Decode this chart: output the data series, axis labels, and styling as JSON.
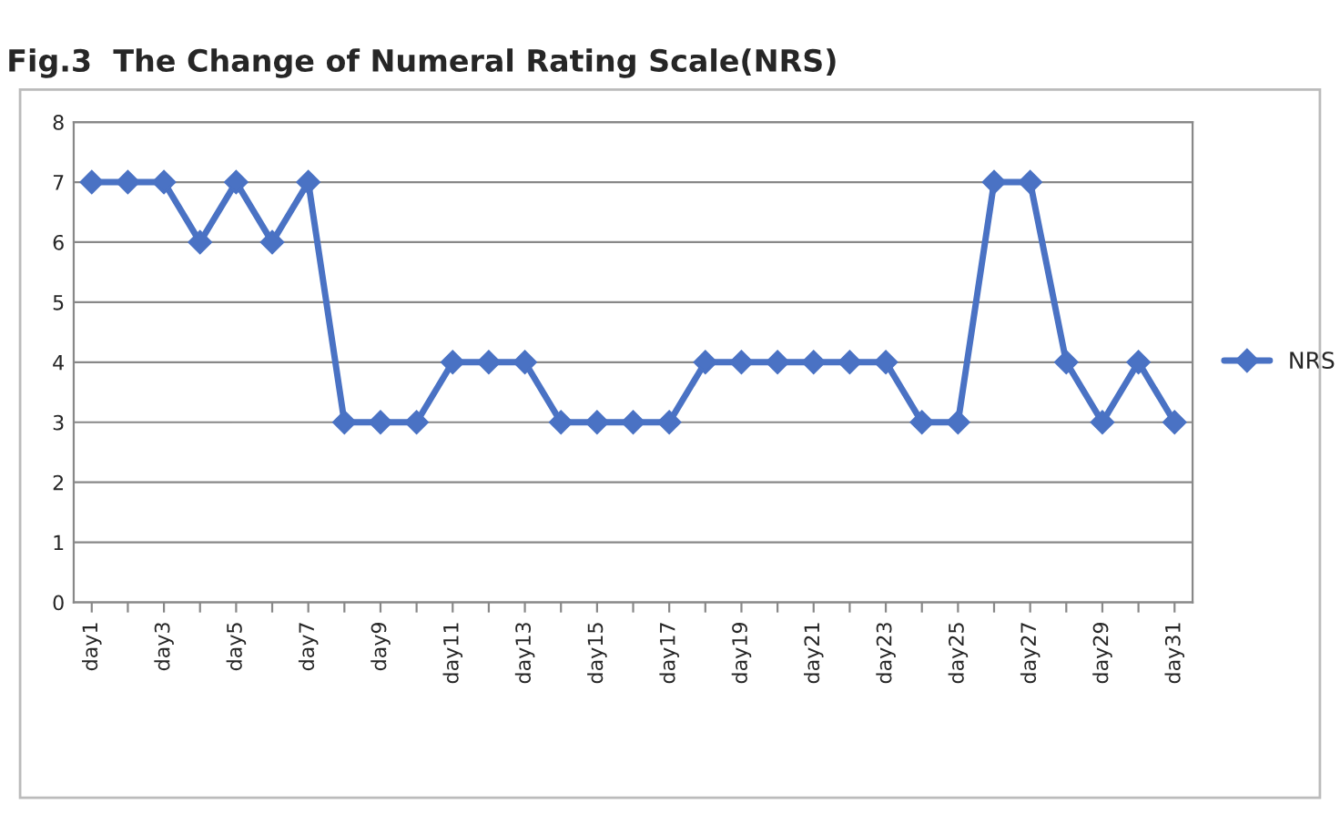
{
  "chart_data": {
    "type": "line",
    "title": "Fig.3  The Change of Numeral Rating Scale(NRS)",
    "categories": [
      "day1",
      null,
      "day3",
      null,
      "day5",
      null,
      "day7",
      null,
      "day9",
      null,
      "day11",
      null,
      "day13",
      null,
      "day15",
      null,
      "day17",
      null,
      "day19",
      null,
      "day21",
      null,
      "day23",
      null,
      "day25",
      null,
      "day27",
      null,
      "day29",
      null,
      "day31"
    ],
    "series": [
      {
        "name": "NRS",
        "color": "#4a72c4",
        "values": [
          7,
          7,
          7,
          6,
          7,
          6,
          7,
          3,
          3,
          3,
          4,
          4,
          4,
          3,
          3,
          3,
          3,
          4,
          4,
          4,
          4,
          4,
          4,
          3,
          3,
          7,
          7,
          4,
          3,
          4,
          3
        ]
      }
    ],
    "ylim": [
      0,
      8
    ],
    "yticks": [
      0,
      1,
      2,
      3,
      4,
      5,
      6,
      7,
      8
    ],
    "grid": "y",
    "legend": "right",
    "marker": "diamond",
    "line_style": "solid"
  }
}
